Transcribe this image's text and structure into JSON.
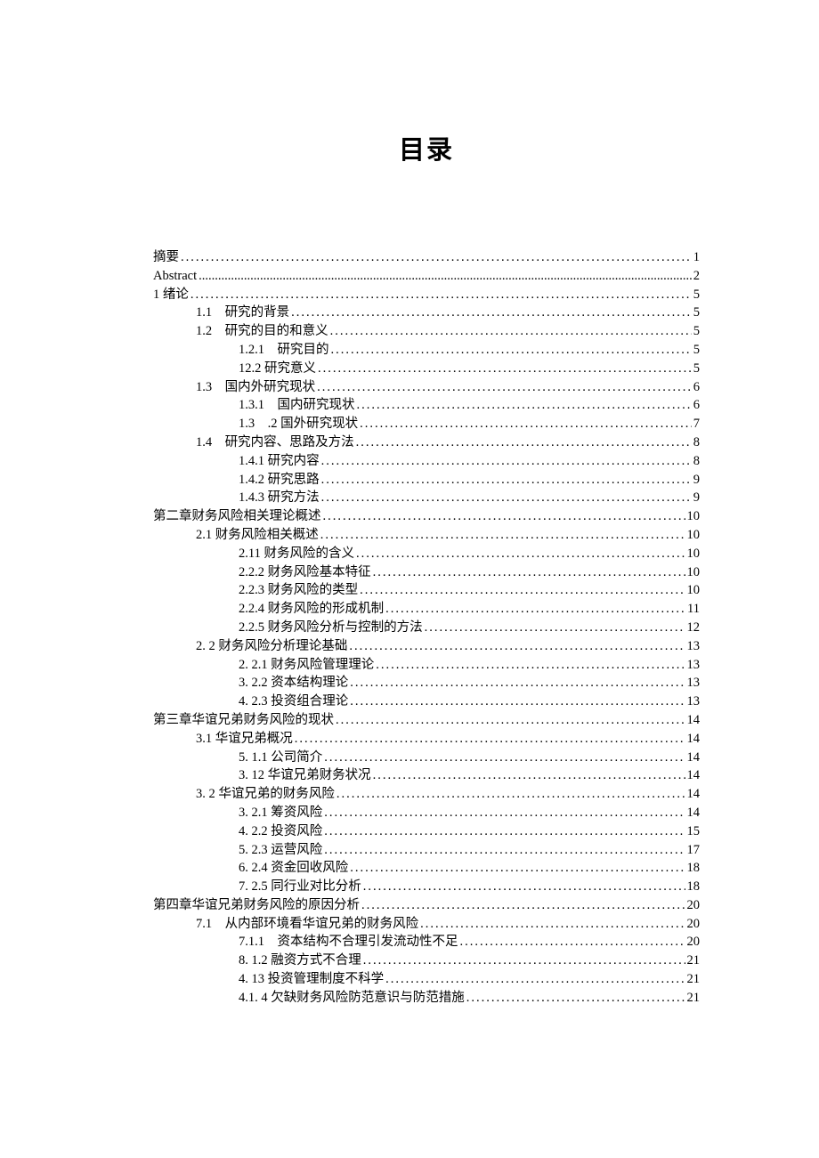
{
  "title": "目录",
  "text_color": "#000000",
  "background_color": "#ffffff",
  "base_fontsize": 14.5,
  "title_fontsize": 29,
  "font_family": "SimSun",
  "line_height": 1.0,
  "entries": [
    {
      "label": "摘要",
      "page": "1",
      "indent": 0,
      "dots": "sparse"
    },
    {
      "label": "Abstract",
      "page": "2",
      "indent": 0,
      "dots": "dense",
      "class": "abstract-en"
    },
    {
      "label": "1 绪论",
      "page": "5",
      "indent": 0,
      "dots": "sparse"
    },
    {
      "label": "1.1　研究的背景",
      "page": "5",
      "indent": 1,
      "dots": "sparse"
    },
    {
      "label": "1.2　研究的目的和意义",
      "page": "5",
      "indent": 1,
      "dots": "sparse"
    },
    {
      "label": "1.2.1　研究目的",
      "page": "5",
      "indent": 2,
      "dots": "sparse"
    },
    {
      "label": "12.2 研究意义",
      "page": "5",
      "indent": 2,
      "dots": "sparse"
    },
    {
      "label": "1.3　国内外研究现状",
      "page": "6",
      "indent": 1,
      "dots": "sparse"
    },
    {
      "label": "1.3.1　国内研究现状",
      "page": "6",
      "indent": 2,
      "dots": "sparse"
    },
    {
      "label": "1.3　.2 国外研究现状",
      "page": "7",
      "indent": 2,
      "dots": "sparse"
    },
    {
      "label": "1.4　研究内容、思路及方法",
      "page": "8",
      "indent": 1,
      "dots": "sparse"
    },
    {
      "label": "1.4.1 研究内容",
      "page": "8",
      "indent": 2,
      "dots": "sparse"
    },
    {
      "label": "1.4.2 研究思路",
      "page": "9",
      "indent": 2,
      "dots": "sparse"
    },
    {
      "label": "1.4.3 研究方法",
      "page": "9",
      "indent": 2,
      "dots": "sparse"
    },
    {
      "label": "第二章财务风险相关理论概述",
      "page": "10",
      "indent": 0,
      "dots": "sparse"
    },
    {
      "label": "2.1 财务风险相关概述",
      "page": "10",
      "indent": 1,
      "dots": "sparse"
    },
    {
      "label": "2.11 财务风险的含义",
      "page": "10",
      "indent": 2,
      "dots": "sparse"
    },
    {
      "label": "2.2.2 财务风险基本特征",
      "page": "10",
      "indent": 2,
      "dots": "sparse"
    },
    {
      "label": "2.2.3 财务风险的类型",
      "page": "10",
      "indent": 2,
      "dots": "sparse"
    },
    {
      "label": "2.2.4 财务风险的形成机制",
      "page": "11",
      "indent": 2,
      "dots": "sparse"
    },
    {
      "label": "2.2.5 财务风险分析与控制的方法",
      "page": "12",
      "indent": 2,
      "dots": "sparse"
    },
    {
      "label": "2.  2 财务风险分析理论基础",
      "page": "13",
      "indent": 1,
      "dots": "sparse"
    },
    {
      "label": "2.  2.1 财务风险管理理论",
      "page": "13",
      "indent": 2,
      "dots": "sparse"
    },
    {
      "label": "3.  2.2 资本结构理论",
      "page": "13",
      "indent": 2,
      "dots": "sparse"
    },
    {
      "label": "4.  2.3 投资组合理论",
      "page": "13",
      "indent": 2,
      "dots": "sparse"
    },
    {
      "label": "第三章华谊兄弟财务风险的现状",
      "page": "14",
      "indent": 0,
      "dots": "sparse"
    },
    {
      "label": "3.1 华谊兄弟概况",
      "page": "14",
      "indent": 1,
      "dots": "sparse"
    },
    {
      "label": "5.  1.1 公司简介",
      "page": "14",
      "indent": 2,
      "dots": "sparse"
    },
    {
      "label": "3.  12 华谊兄弟财务状况",
      "page": "14",
      "indent": 2,
      "dots": "sparse"
    },
    {
      "label": "3.  2 华谊兄弟的财务风险",
      "page": "14",
      "indent": 1,
      "dots": "sparse"
    },
    {
      "label": "3.  2.1 筹资风险",
      "page": "14",
      "indent": 2,
      "dots": "sparse"
    },
    {
      "label": "4.  2.2 投资风险",
      "page": "15",
      "indent": 2,
      "dots": "sparse"
    },
    {
      "label": "5.  2.3 运营风险",
      "page": "17",
      "indent": 2,
      "dots": "sparse"
    },
    {
      "label": "6.  2.4 资金回收风险",
      "page": "18",
      "indent": 2,
      "dots": "sparse"
    },
    {
      "label": "7.  2.5 同行业对比分析",
      "page": "18",
      "indent": 2,
      "dots": "sparse"
    },
    {
      "label": "第四章华谊兄弟财务风险的原因分析",
      "page": "20",
      "indent": 0,
      "dots": "sparse"
    },
    {
      "label": "7.1　从内部环境看华谊兄弟的财务风险",
      "page": "20",
      "indent": 1,
      "dots": "sparse"
    },
    {
      "label": "7.1.1　资本结构不合理引发流动性不足",
      "page": "20",
      "indent": 2,
      "dots": "sparse"
    },
    {
      "label": "8.  1.2 融资方式不合理",
      "page": "21",
      "indent": 2,
      "dots": "sparse"
    },
    {
      "label": "4.  13 投资管理制度不科学",
      "page": "21",
      "indent": 2,
      "dots": "sparse"
    },
    {
      "label": "4.1.  4 欠缺财务风险防范意识与防范措施",
      "page": "21",
      "indent": 2,
      "dots": "sparse"
    }
  ]
}
